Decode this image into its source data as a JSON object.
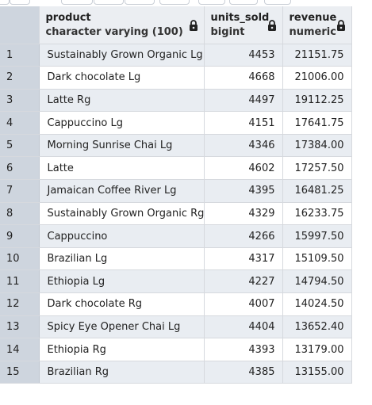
{
  "columns": [
    {
      "name": "product",
      "type": "character varying (100)"
    },
    {
      "name": "units_sold",
      "type": "bigint"
    },
    {
      "name": "revenue",
      "type": "numeric"
    }
  ],
  "rows": [
    {
      "num": "1",
      "product": "Sustainably Grown Organic Lg",
      "units_sold": "4453",
      "revenue": "21151.75"
    },
    {
      "num": "2",
      "product": "Dark chocolate Lg",
      "units_sold": "4668",
      "revenue": "21006.00"
    },
    {
      "num": "3",
      "product": "Latte Rg",
      "units_sold": "4497",
      "revenue": "19112.25"
    },
    {
      "num": "4",
      "product": "Cappuccino Lg",
      "units_sold": "4151",
      "revenue": "17641.75"
    },
    {
      "num": "5",
      "product": "Morning Sunrise Chai Lg",
      "units_sold": "4346",
      "revenue": "17384.00"
    },
    {
      "num": "6",
      "product": "Latte",
      "units_sold": "4602",
      "revenue": "17257.50"
    },
    {
      "num": "7",
      "product": "Jamaican Coffee River Lg",
      "units_sold": "4395",
      "revenue": "16481.25"
    },
    {
      "num": "8",
      "product": "Sustainably Grown Organic Rg",
      "units_sold": "4329",
      "revenue": "16233.75"
    },
    {
      "num": "9",
      "product": "Cappuccino",
      "units_sold": "4266",
      "revenue": "15997.50"
    },
    {
      "num": "10",
      "product": "Brazilian Lg",
      "units_sold": "4317",
      "revenue": "15109.50"
    },
    {
      "num": "11",
      "product": "Ethiopia Lg",
      "units_sold": "4227",
      "revenue": "14794.50"
    },
    {
      "num": "12",
      "product": "Dark chocolate Rg",
      "units_sold": "4007",
      "revenue": "14024.50"
    },
    {
      "num": "13",
      "product": "Spicy Eye Opener Chai Lg",
      "units_sold": "4404",
      "revenue": "13652.40"
    },
    {
      "num": "14",
      "product": "Ethiopia Rg",
      "units_sold": "4393",
      "revenue": "13179.00"
    },
    {
      "num": "15",
      "product": "Brazilian Rg",
      "units_sold": "4385",
      "revenue": "13155.00"
    }
  ],
  "icons": {
    "column_lock": "lock-icon"
  }
}
